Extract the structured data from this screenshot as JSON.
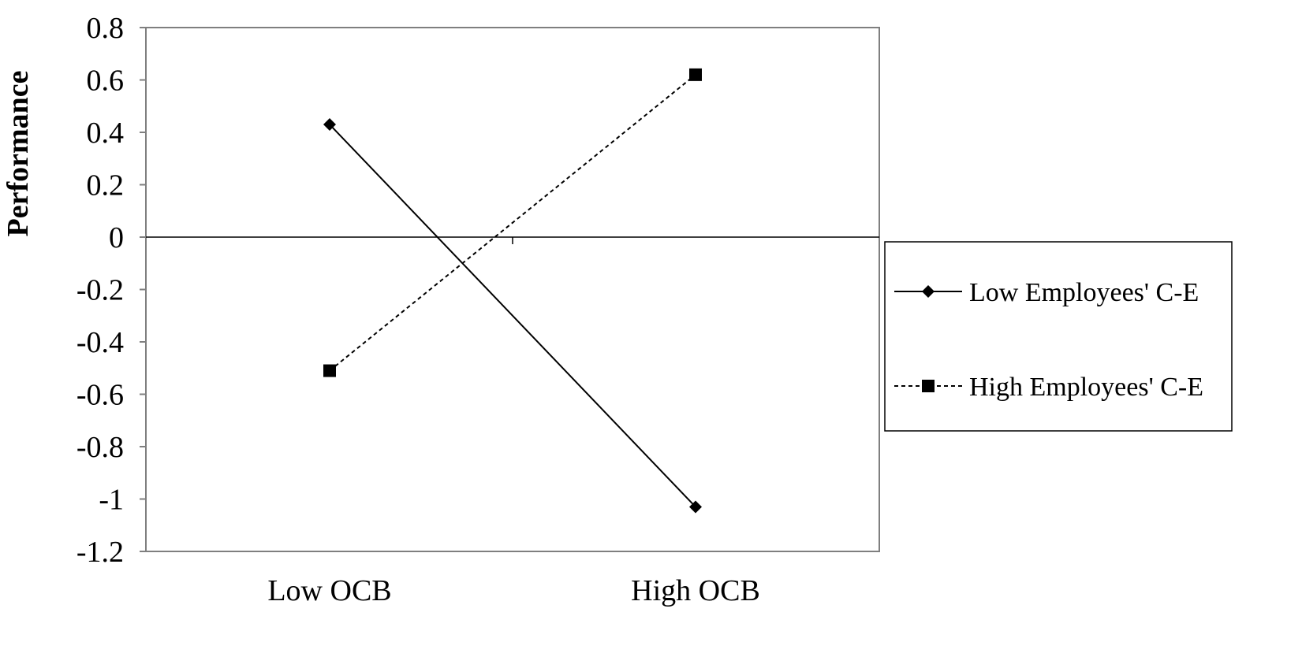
{
  "chart_data": {
    "type": "line",
    "title": "",
    "xlabel": "",
    "ylabel": "Performance",
    "categories": [
      "Low OCB",
      "High OCB"
    ],
    "ylim": [
      -1.2,
      0.8
    ],
    "yticks": [
      0.8,
      0.6,
      0.4,
      0.2,
      0,
      -0.2,
      -0.4,
      -0.6,
      -0.8,
      -1,
      -1.2
    ],
    "ytick_labels": [
      "0.8",
      "0.6",
      "0.4",
      "0.2",
      "0",
      "-0.2",
      "-0.4",
      "-0.6",
      "-0.8",
      "-1",
      "-1.2"
    ],
    "grid": false,
    "legend_position": "right",
    "series": [
      {
        "name": "Low Employees' C-E",
        "values": [
          0.43,
          -1.03
        ],
        "marker": "diamond",
        "line": "solid",
        "color": "#000000"
      },
      {
        "name": "High Employees' C-E",
        "values": [
          -0.51,
          0.62
        ],
        "marker": "square",
        "line": "dashed",
        "color": "#000000"
      }
    ]
  }
}
